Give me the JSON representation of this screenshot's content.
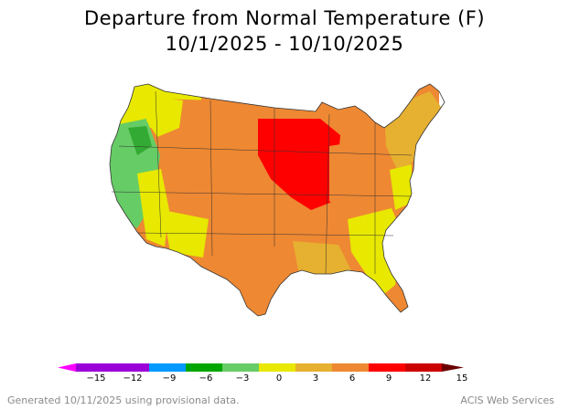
{
  "title": {
    "line1": "Departure from Normal Temperature (F)",
    "line2": "10/1/2025 - 10/10/2025"
  },
  "legend": {
    "tick_labels": [
      "−15",
      "−12",
      "−9",
      "−6",
      "−3",
      "0",
      "3",
      "6",
      "9",
      "12",
      "15"
    ],
    "bins": [
      {
        "color": "#9b00d9"
      },
      {
        "color": "#9b00d9"
      },
      {
        "color": "#0099ff"
      },
      {
        "color": "#00a600"
      },
      {
        "color": "#66cc66"
      },
      {
        "color": "#e8e800"
      },
      {
        "color": "#e6b030"
      },
      {
        "color": "#ee8833"
      },
      {
        "color": "#ff0000"
      },
      {
        "color": "#cc0000"
      }
    ],
    "low_arrow_color": "#ff00ff",
    "high_arrow_color": "#6b0000"
  },
  "map_colors": {
    "background_land": "#e6b030",
    "cool_green": "#66cc66",
    "dark_green": "#33aa33",
    "yellow": "#e8e800",
    "orange": "#ee8833",
    "red": "#ff0000",
    "border": "#333333"
  },
  "footer": {
    "left": "Generated 10/11/2025 using provisional data.",
    "right": "ACIS Web Services"
  }
}
